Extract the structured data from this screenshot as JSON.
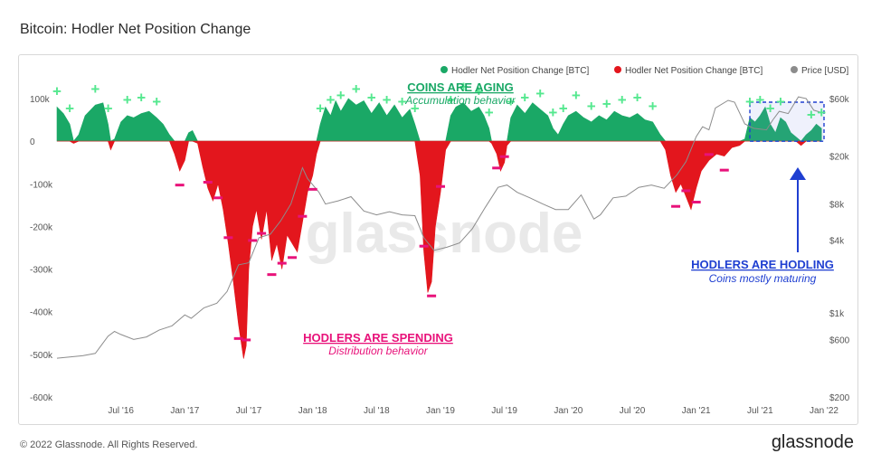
{
  "page": {
    "title": "Bitcoin: Hodler Net Position Change",
    "footer": "© 2022 Glassnode. All Rights Reserved.",
    "brand": "glassnode",
    "watermark": "glassnode"
  },
  "annotations": {
    "aging_title": "COINS ARE AGING",
    "aging_sub": "Accumulation behavior",
    "spending_title": "HODLERS ARE SPENDING",
    "spending_sub": "Distribution behavior",
    "hodling_title": "HODLERS ARE HODLING",
    "hodling_sub": "Coins mostly maturing"
  },
  "colors": {
    "positive": "#1aa866",
    "negative": "#e3161d",
    "price": "#8c8c8c",
    "aging": "#1aa866",
    "spending": "#e8127a",
    "hodling": "#1f3fd1",
    "plus_marker": "#55e88f",
    "minus_marker": "#e8127a"
  },
  "chart_data": {
    "type": "area",
    "title": "Bitcoin: Hodler Net Position Change",
    "legend": {
      "placement": "top-right",
      "entries": [
        {
          "label": "Hodler Net Position Change [BTC]",
          "color": "#1aa866"
        },
        {
          "label": "Hodler Net Position Change [BTC]",
          "color": "#e3161d"
        },
        {
          "label": "Price [USD]",
          "color": "#8c8c8c"
        }
      ]
    },
    "x_ticks": [
      "Jul '16",
      "Jan '17",
      "Jul '17",
      "Jan '18",
      "Jul '18",
      "Jan '19",
      "Jul '19",
      "Jan '20",
      "Jul '20",
      "Jan '21",
      "Jul '21",
      "Jan '22"
    ],
    "x_range": [
      2016.0,
      2022.0
    ],
    "y_left_ticks": [
      {
        "v": 100000,
        "label": "100k"
      },
      {
        "v": 0,
        "label": "0"
      },
      {
        "v": -100000,
        "label": "-100k"
      },
      {
        "v": -200000,
        "label": "-200k"
      },
      {
        "v": -300000,
        "label": "-300k"
      },
      {
        "v": -400000,
        "label": "-400k"
      },
      {
        "v": -500000,
        "label": "-500k"
      },
      {
        "v": -600000,
        "label": "-600k"
      }
    ],
    "y_left_range": [
      -600000,
      100000
    ],
    "y_right_scale": "log",
    "y_right_ticks": [
      {
        "v": 60000,
        "label": "$60k"
      },
      {
        "v": 20000,
        "label": "$20k"
      },
      {
        "v": 8000,
        "label": "$8k"
      },
      {
        "v": 4000,
        "label": "$4k"
      },
      {
        "v": 1000,
        "label": "$1k"
      },
      {
        "v": 600,
        "label": "$600"
      },
      {
        "v": 200,
        "label": "$200"
      }
    ],
    "y_right_range": [
      200,
      60000
    ],
    "net_position_change": [
      [
        2016.0,
        80000
      ],
      [
        2016.05,
        65000
      ],
      [
        2016.1,
        40000
      ],
      [
        2016.13,
        -5000
      ],
      [
        2016.17,
        15000
      ],
      [
        2016.22,
        60000
      ],
      [
        2016.3,
        85000
      ],
      [
        2016.36,
        90000
      ],
      [
        2016.4,
        40000
      ],
      [
        2016.42,
        -20000
      ],
      [
        2016.45,
        5000
      ],
      [
        2016.5,
        45000
      ],
      [
        2016.55,
        60000
      ],
      [
        2016.6,
        55000
      ],
      [
        2016.66,
        65000
      ],
      [
        2016.72,
        70000
      ],
      [
        2016.78,
        55000
      ],
      [
        2016.83,
        40000
      ],
      [
        2016.88,
        15000
      ],
      [
        2016.92,
        -30000
      ],
      [
        2016.96,
        -70000
      ],
      [
        2017.0,
        -45000
      ],
      [
        2017.03,
        20000
      ],
      [
        2017.06,
        25000
      ],
      [
        2017.1,
        -5000
      ],
      [
        2017.14,
        -60000
      ],
      [
        2017.18,
        -110000
      ],
      [
        2017.22,
        -140000
      ],
      [
        2017.26,
        -100000
      ],
      [
        2017.3,
        -160000
      ],
      [
        2017.34,
        -240000
      ],
      [
        2017.38,
        -330000
      ],
      [
        2017.42,
        -430000
      ],
      [
        2017.46,
        -510000
      ],
      [
        2017.48,
        -480000
      ],
      [
        2017.5,
        -300000
      ],
      [
        2017.53,
        -200000
      ],
      [
        2017.56,
        -160000
      ],
      [
        2017.6,
        -230000
      ],
      [
        2017.64,
        -160000
      ],
      [
        2017.68,
        -280000
      ],
      [
        2017.72,
        -240000
      ],
      [
        2017.76,
        -300000
      ],
      [
        2017.8,
        -220000
      ],
      [
        2017.84,
        -240000
      ],
      [
        2017.88,
        -260000
      ],
      [
        2017.92,
        -190000
      ],
      [
        2017.96,
        -120000
      ],
      [
        2018.0,
        -80000
      ],
      [
        2018.03,
        -30000
      ],
      [
        2018.06,
        40000
      ],
      [
        2018.1,
        80000
      ],
      [
        2018.14,
        60000
      ],
      [
        2018.18,
        95000
      ],
      [
        2018.22,
        70000
      ],
      [
        2018.28,
        100000
      ],
      [
        2018.34,
        85000
      ],
      [
        2018.4,
        95000
      ],
      [
        2018.46,
        65000
      ],
      [
        2018.52,
        90000
      ],
      [
        2018.58,
        60000
      ],
      [
        2018.64,
        85000
      ],
      [
        2018.7,
        55000
      ],
      [
        2018.76,
        75000
      ],
      [
        2018.8,
        40000
      ],
      [
        2018.84,
        -80000
      ],
      [
        2018.87,
        -260000
      ],
      [
        2018.9,
        -355000
      ],
      [
        2018.93,
        -330000
      ],
      [
        2018.96,
        -200000
      ],
      [
        2019.0,
        -120000
      ],
      [
        2019.04,
        -20000
      ],
      [
        2019.08,
        60000
      ],
      [
        2019.12,
        80000
      ],
      [
        2019.18,
        90000
      ],
      [
        2019.24,
        70000
      ],
      [
        2019.3,
        80000
      ],
      [
        2019.34,
        60000
      ],
      [
        2019.38,
        30000
      ],
      [
        2019.4,
        -5000
      ],
      [
        2019.44,
        -30000
      ],
      [
        2019.47,
        -70000
      ],
      [
        2019.5,
        -50000
      ],
      [
        2019.52,
        -10000
      ],
      [
        2019.55,
        55000
      ],
      [
        2019.6,
        85000
      ],
      [
        2019.66,
        65000
      ],
      [
        2019.72,
        90000
      ],
      [
        2019.78,
        75000
      ],
      [
        2019.84,
        60000
      ],
      [
        2019.88,
        30000
      ],
      [
        2019.92,
        15000
      ],
      [
        2019.96,
        40000
      ],
      [
        2020.0,
        60000
      ],
      [
        2020.06,
        70000
      ],
      [
        2020.12,
        55000
      ],
      [
        2020.18,
        45000
      ],
      [
        2020.24,
        60000
      ],
      [
        2020.3,
        50000
      ],
      [
        2020.36,
        70000
      ],
      [
        2020.42,
        60000
      ],
      [
        2020.48,
        55000
      ],
      [
        2020.54,
        65000
      ],
      [
        2020.6,
        50000
      ],
      [
        2020.66,
        45000
      ],
      [
        2020.72,
        15000
      ],
      [
        2020.76,
        -20000
      ],
      [
        2020.8,
        -80000
      ],
      [
        2020.84,
        -120000
      ],
      [
        2020.88,
        -100000
      ],
      [
        2020.92,
        -130000
      ],
      [
        2020.96,
        -160000
      ],
      [
        2021.0,
        -110000
      ],
      [
        2021.04,
        -70000
      ],
      [
        2021.1,
        -45000
      ],
      [
        2021.16,
        -30000
      ],
      [
        2021.22,
        -35000
      ],
      [
        2021.28,
        -15000
      ],
      [
        2021.34,
        -10000
      ],
      [
        2021.38,
        5000
      ],
      [
        2021.42,
        55000
      ],
      [
        2021.46,
        45000
      ],
      [
        2021.5,
        60000
      ],
      [
        2021.54,
        80000
      ],
      [
        2021.58,
        40000
      ],
      [
        2021.62,
        20000
      ],
      [
        2021.66,
        55000
      ],
      [
        2021.7,
        45000
      ],
      [
        2021.74,
        20000
      ],
      [
        2021.78,
        10000
      ],
      [
        2021.82,
        -10000
      ],
      [
        2021.86,
        15000
      ],
      [
        2021.9,
        25000
      ],
      [
        2021.94,
        40000
      ],
      [
        2021.98,
        30000
      ]
    ],
    "price_usd": [
      [
        2016.0,
        420
      ],
      [
        2016.1,
        430
      ],
      [
        2016.2,
        440
      ],
      [
        2016.3,
        460
      ],
      [
        2016.4,
        640
      ],
      [
        2016.45,
        700
      ],
      [
        2016.5,
        660
      ],
      [
        2016.6,
        600
      ],
      [
        2016.7,
        630
      ],
      [
        2016.8,
        720
      ],
      [
        2016.9,
        780
      ],
      [
        2017.0,
        960
      ],
      [
        2017.05,
        900
      ],
      [
        2017.15,
        1100
      ],
      [
        2017.25,
        1200
      ],
      [
        2017.33,
        1500
      ],
      [
        2017.42,
        2500
      ],
      [
        2017.5,
        2600
      ],
      [
        2017.58,
        4200
      ],
      [
        2017.67,
        4500
      ],
      [
        2017.75,
        5800
      ],
      [
        2017.83,
        8000
      ],
      [
        2017.92,
        16000
      ],
      [
        2017.96,
        13000
      ],
      [
        2018.05,
        10000
      ],
      [
        2018.1,
        8000
      ],
      [
        2018.2,
        8500
      ],
      [
        2018.3,
        9200
      ],
      [
        2018.4,
        7000
      ],
      [
        2018.5,
        6500
      ],
      [
        2018.6,
        6900
      ],
      [
        2018.7,
        6500
      ],
      [
        2018.8,
        6400
      ],
      [
        2018.87,
        4200
      ],
      [
        2018.95,
        3300
      ],
      [
        2019.05,
        3500
      ],
      [
        2019.15,
        3800
      ],
      [
        2019.25,
        5000
      ],
      [
        2019.35,
        7500
      ],
      [
        2019.45,
        11000
      ],
      [
        2019.52,
        11500
      ],
      [
        2019.6,
        10000
      ],
      [
        2019.7,
        9000
      ],
      [
        2019.8,
        8000
      ],
      [
        2019.9,
        7200
      ],
      [
        2020.0,
        7200
      ],
      [
        2020.1,
        9500
      ],
      [
        2020.2,
        6000
      ],
      [
        2020.25,
        6500
      ],
      [
        2020.35,
        9000
      ],
      [
        2020.45,
        9300
      ],
      [
        2020.55,
        11000
      ],
      [
        2020.65,
        11500
      ],
      [
        2020.75,
        10800
      ],
      [
        2020.85,
        14000
      ],
      [
        2020.92,
        18000
      ],
      [
        2021.0,
        29000
      ],
      [
        2021.05,
        35000
      ],
      [
        2021.1,
        33000
      ],
      [
        2021.15,
        50000
      ],
      [
        2021.25,
        58000
      ],
      [
        2021.3,
        56000
      ],
      [
        2021.38,
        37000
      ],
      [
        2021.45,
        34000
      ],
      [
        2021.55,
        33000
      ],
      [
        2021.6,
        40000
      ],
      [
        2021.65,
        47000
      ],
      [
        2021.72,
        45000
      ],
      [
        2021.8,
        62000
      ],
      [
        2021.86,
        60000
      ],
      [
        2021.92,
        48000
      ],
      [
        2021.98,
        46000
      ]
    ],
    "boxed_region": {
      "x_start": 2021.42,
      "x_end": 2022.0
    }
  }
}
